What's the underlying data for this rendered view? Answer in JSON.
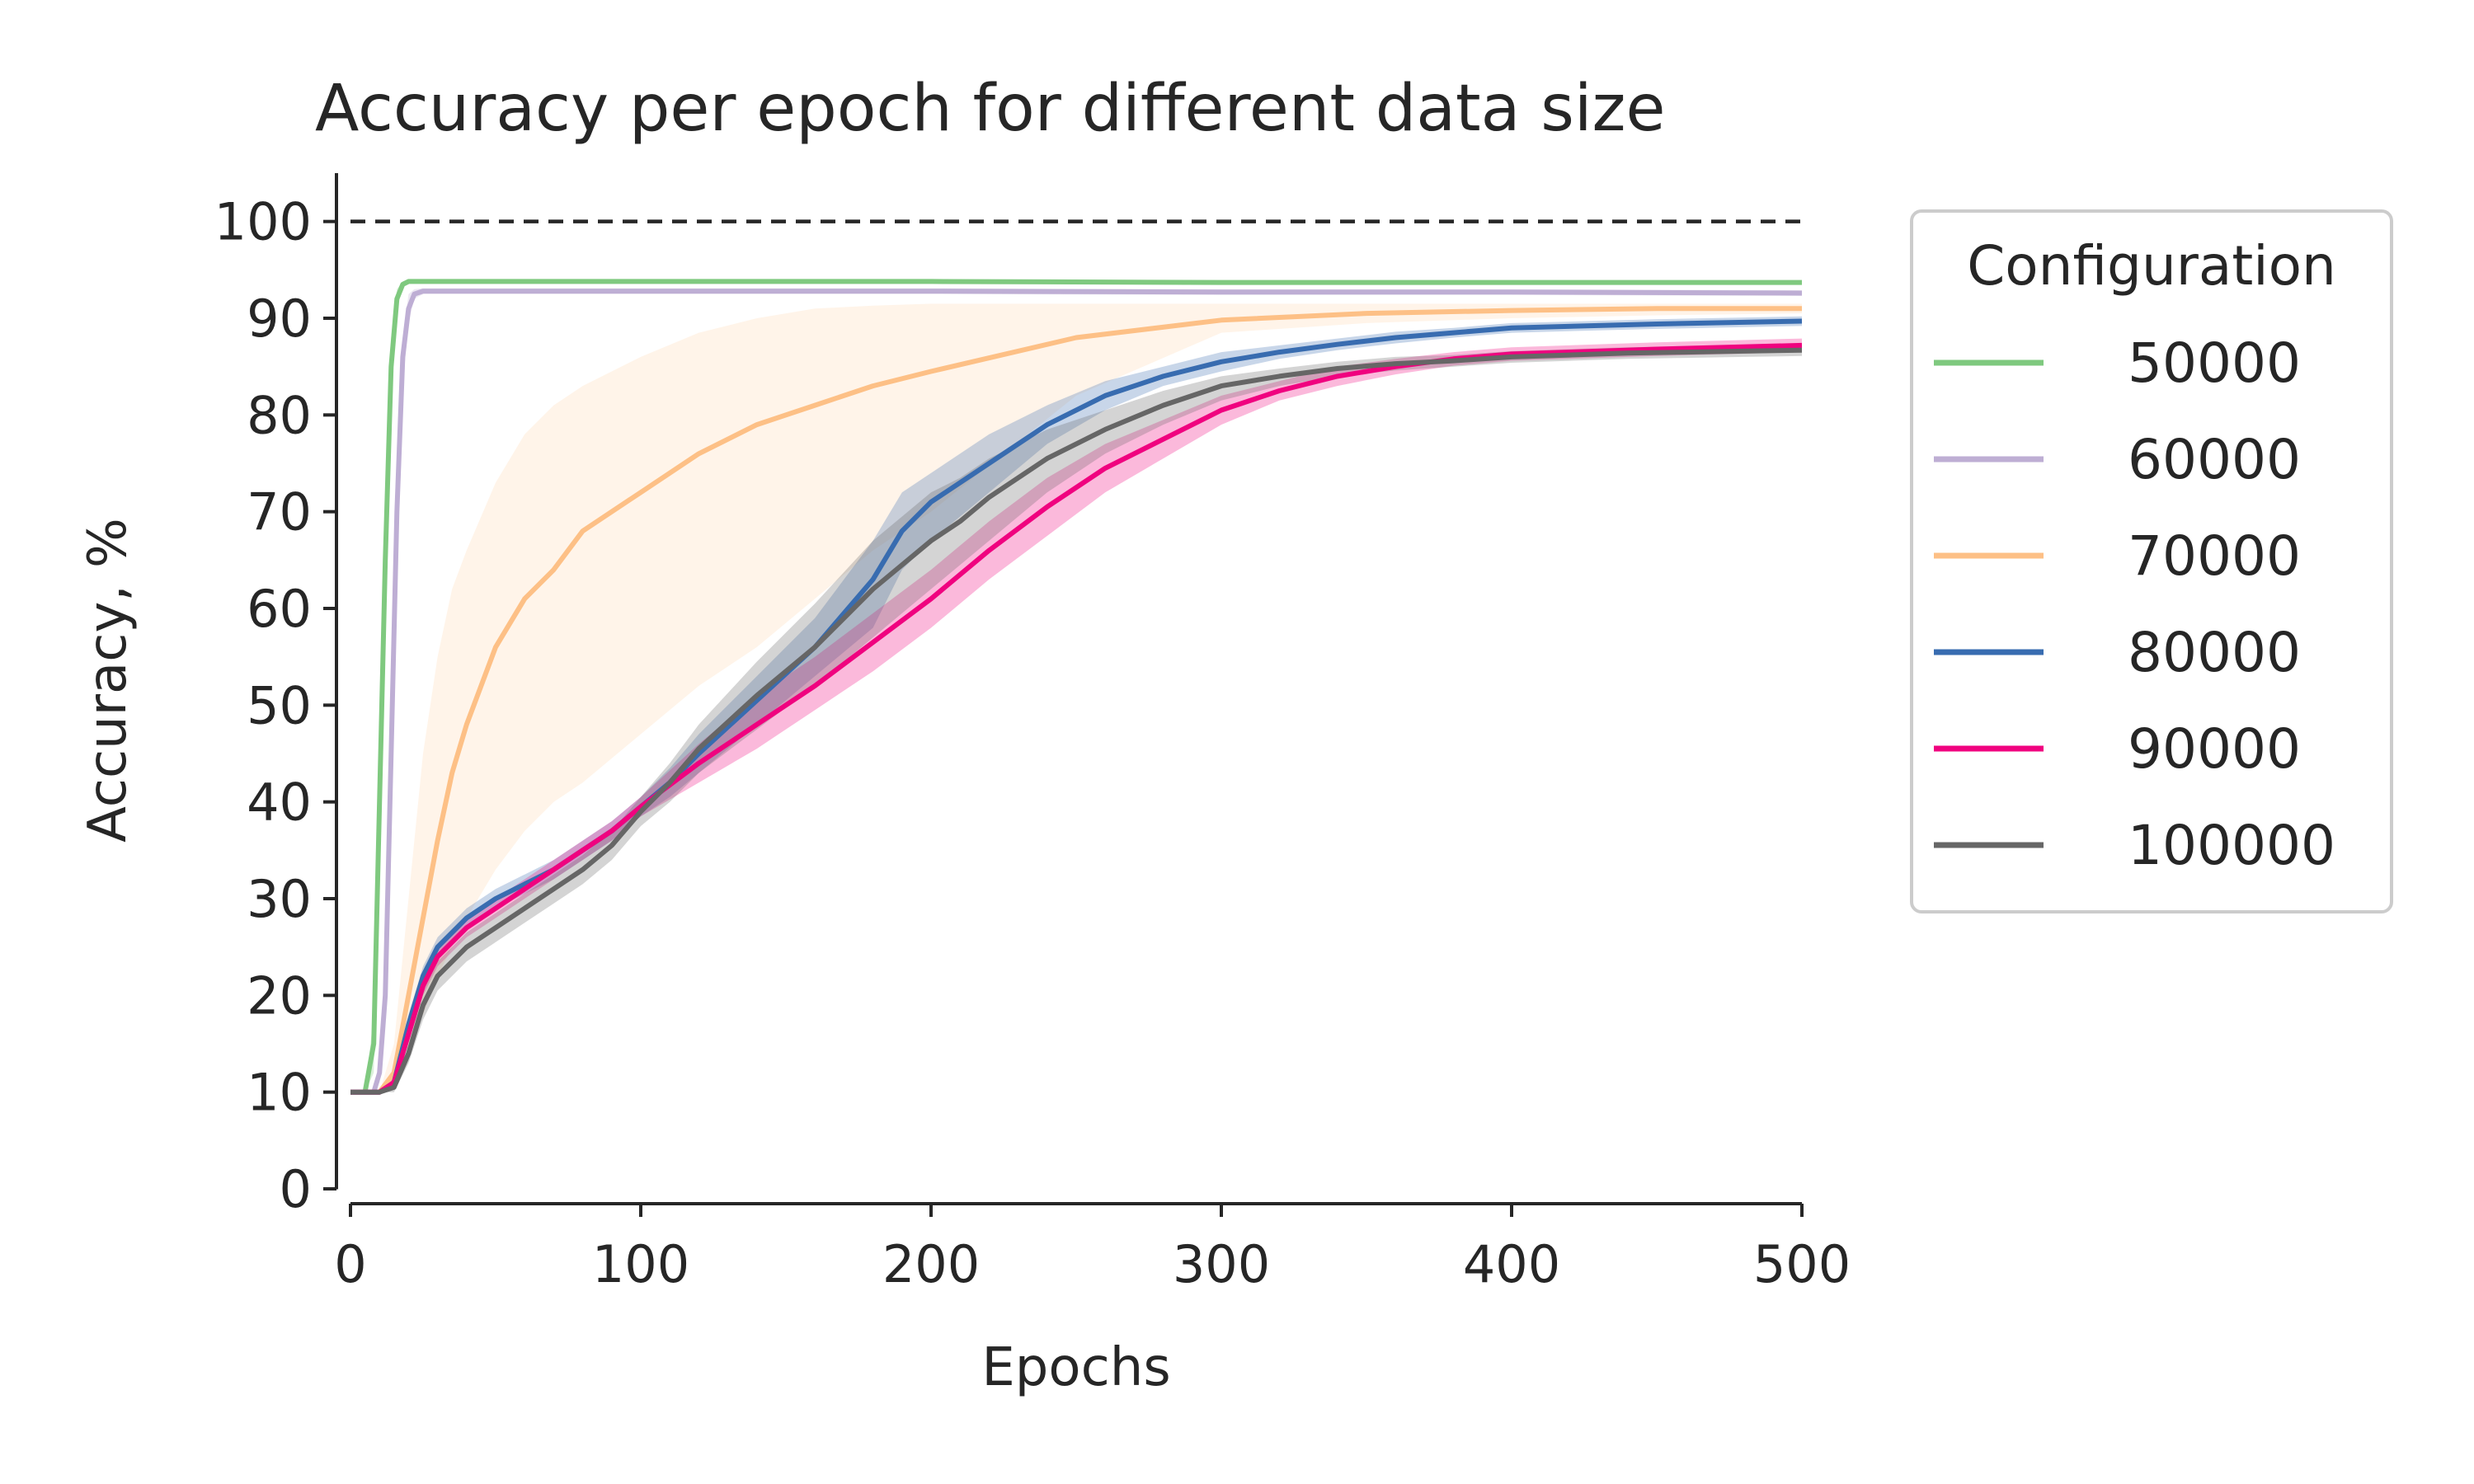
{
  "chart_data": {
    "type": "line",
    "title": "Accuracy per epoch for different data size",
    "xlabel": "Epochs",
    "ylabel": "Accuracy, %",
    "xlim": [
      0,
      500
    ],
    "ylim": [
      0,
      105
    ],
    "xticks": [
      0,
      100,
      200,
      300,
      400,
      500
    ],
    "yticks": [
      0,
      10,
      20,
      30,
      40,
      50,
      60,
      70,
      80,
      90,
      100
    ],
    "reference_line": {
      "y": 100,
      "style": "dashed",
      "color": "#000000"
    },
    "grid": false,
    "legend": {
      "title": "Configuration",
      "placement": "outside-right"
    },
    "series": [
      {
        "name": "50000",
        "color": "#7fc97f",
        "x": [
          0,
          5,
          8,
          10,
          12,
          14,
          16,
          18,
          20,
          25,
          30,
          50,
          100,
          200,
          300,
          400,
          500
        ],
        "y": [
          10,
          10,
          15,
          40,
          65,
          85,
          92,
          93.5,
          93.8,
          93.8,
          93.8,
          93.8,
          93.8,
          93.8,
          93.7,
          93.7,
          93.7
        ],
        "lower": [
          10,
          10,
          12,
          35,
          60,
          82,
          91,
          93.2,
          93.6,
          93.6,
          93.6,
          93.6,
          93.6,
          93.6,
          93.5,
          93.5,
          93.5
        ],
        "upper": [
          10,
          10,
          18,
          45,
          70,
          88,
          93,
          93.8,
          94,
          94,
          94,
          94,
          94,
          94,
          93.9,
          93.9,
          93.9
        ]
      },
      {
        "name": "60000",
        "color": "#beaed4",
        "x": [
          0,
          8,
          10,
          12,
          14,
          16,
          18,
          20,
          22,
          25,
          30,
          50,
          100,
          200,
          300,
          400,
          500
        ],
        "y": [
          10,
          10,
          12,
          20,
          45,
          70,
          86,
          91,
          92.5,
          92.8,
          92.8,
          92.8,
          92.8,
          92.8,
          92.7,
          92.7,
          92.6
        ],
        "lower": [
          10,
          10,
          11,
          17,
          40,
          65,
          83,
          89.5,
          92,
          92.5,
          92.5,
          92.5,
          92.5,
          92.5,
          92.4,
          92.4,
          92.3
        ],
        "upper": [
          10,
          10,
          13,
          23,
          50,
          75,
          88,
          92.5,
          93,
          93.1,
          93.1,
          93.1,
          93.1,
          93.1,
          93,
          93,
          92.9
        ]
      },
      {
        "name": "70000",
        "color": "#fdc086",
        "x": [
          0,
          10,
          15,
          20,
          25,
          30,
          35,
          40,
          50,
          60,
          70,
          80,
          100,
          120,
          140,
          160,
          180,
          200,
          250,
          300,
          350,
          400,
          450,
          500
        ],
        "y": [
          10,
          10,
          12,
          20,
          28,
          36,
          43,
          48,
          56,
          61,
          64,
          68,
          72,
          76,
          79,
          81,
          83,
          84.5,
          88,
          89.8,
          90.5,
          90.8,
          91,
          91
        ],
        "lower": [
          10,
          10,
          11,
          15,
          18,
          22,
          25,
          28,
          33,
          37,
          40,
          42,
          47,
          52,
          56,
          61,
          66,
          70,
          82,
          88.5,
          89.5,
          90,
          90.3,
          90.5
        ],
        "upper": [
          10,
          10,
          15,
          30,
          45,
          55,
          62,
          66,
          73,
          78,
          81,
          83,
          86,
          88.5,
          90,
          91,
          91.3,
          91.5,
          91.5,
          91.5,
          91.5,
          91.5,
          91.5,
          91.5
        ]
      },
      {
        "name": "80000",
        "color": "#386cb0",
        "x": [
          0,
          10,
          15,
          20,
          25,
          30,
          40,
          50,
          60,
          70,
          80,
          90,
          100,
          110,
          120,
          140,
          160,
          180,
          190,
          200,
          220,
          240,
          260,
          280,
          300,
          320,
          340,
          360,
          380,
          400,
          450,
          500
        ],
        "y": [
          10,
          10,
          11,
          17,
          22,
          25,
          28,
          30,
          31.5,
          33,
          35,
          37,
          39.5,
          42,
          45,
          50.5,
          56,
          63,
          68,
          71,
          75,
          79,
          82,
          84,
          85.5,
          86.5,
          87.3,
          88,
          88.5,
          89,
          89.4,
          89.7
        ],
        "lower": [
          10,
          10,
          10.5,
          16,
          21,
          24,
          27,
          29,
          30.5,
          32,
          34,
          36,
          38.5,
          40.5,
          43,
          48,
          53,
          58,
          64,
          67,
          72,
          77,
          80.5,
          83,
          84.5,
          85.8,
          86.7,
          87.4,
          88,
          88.5,
          88.9,
          89.2
        ],
        "upper": [
          10,
          10,
          11.5,
          18,
          23,
          26,
          29,
          31,
          32.5,
          34,
          36,
          38,
          40.5,
          43.5,
          47,
          53,
          59,
          67,
          72,
          74,
          78,
          81,
          83.5,
          85,
          86.5,
          87.2,
          87.9,
          88.6,
          89,
          89.5,
          89.9,
          90.2
        ]
      },
      {
        "name": "90000",
        "color": "#f0027f",
        "x": [
          0,
          10,
          15,
          20,
          25,
          30,
          40,
          50,
          60,
          70,
          80,
          90,
          100,
          120,
          140,
          160,
          180,
          200,
          220,
          240,
          260,
          280,
          300,
          320,
          340,
          360,
          380,
          400,
          450,
          500
        ],
        "y": [
          10,
          10,
          11,
          16,
          21,
          24,
          27,
          29,
          31,
          33,
          35,
          37,
          39.5,
          44,
          48,
          52,
          56.5,
          61,
          66,
          70.5,
          74.5,
          77.5,
          80.5,
          82.5,
          84,
          85,
          85.8,
          86.3,
          86.8,
          87.2
        ],
        "lower": [
          10,
          10,
          10.5,
          15,
          20,
          23,
          26,
          28,
          30,
          32,
          34,
          36,
          38.5,
          42,
          45.5,
          49.5,
          53.5,
          58,
          63,
          67.5,
          72,
          75.5,
          79,
          81.5,
          83,
          84.2,
          85.1,
          85.6,
          86.1,
          86.5
        ],
        "upper": [
          10,
          10,
          11.5,
          17,
          22,
          25,
          28,
          30,
          32,
          34,
          36,
          38,
          40.5,
          46,
          51,
          55,
          59.5,
          64,
          69,
          73.5,
          77,
          79.5,
          82,
          83.5,
          85,
          85.8,
          86.5,
          87,
          87.5,
          87.9
        ]
      },
      {
        "name": "100000",
        "color": "#666666",
        "x": [
          0,
          10,
          15,
          20,
          25,
          30,
          40,
          50,
          60,
          70,
          80,
          90,
          100,
          110,
          120,
          140,
          160,
          180,
          200,
          210,
          220,
          240,
          260,
          280,
          300,
          320,
          340,
          360,
          380,
          400,
          420,
          440,
          460,
          480,
          500
        ],
        "y": [
          10,
          10,
          10.5,
          14,
          19,
          22,
          25,
          27,
          29,
          31,
          33,
          35.5,
          39,
          42,
          45.5,
          51,
          56,
          62,
          67,
          69,
          71.5,
          75.5,
          78.5,
          81,
          83,
          84,
          84.8,
          85.3,
          85.6,
          86,
          86.2,
          86.4,
          86.5,
          86.6,
          86.7
        ],
        "lower": [
          10,
          10,
          10,
          13,
          17.5,
          20.5,
          23.5,
          25.5,
          27.5,
          29.5,
          31.5,
          34,
          37.5,
          40,
          43,
          47.5,
          52,
          57,
          62,
          64.5,
          67,
          72,
          76,
          79,
          81.5,
          83,
          84,
          84.6,
          85,
          85.4,
          85.6,
          85.8,
          85.9,
          86,
          86.1
        ],
        "upper": [
          10,
          10,
          11,
          15,
          20.5,
          23.5,
          26.5,
          28.5,
          30.5,
          32.5,
          34.5,
          37,
          40.5,
          44,
          48,
          54.5,
          60.5,
          67,
          72,
          73.5,
          75.5,
          78.5,
          80.5,
          82.5,
          84,
          84.8,
          85.5,
          86,
          86.2,
          86.6,
          86.8,
          87,
          87.1,
          87.2,
          87.3
        ]
      }
    ]
  }
}
